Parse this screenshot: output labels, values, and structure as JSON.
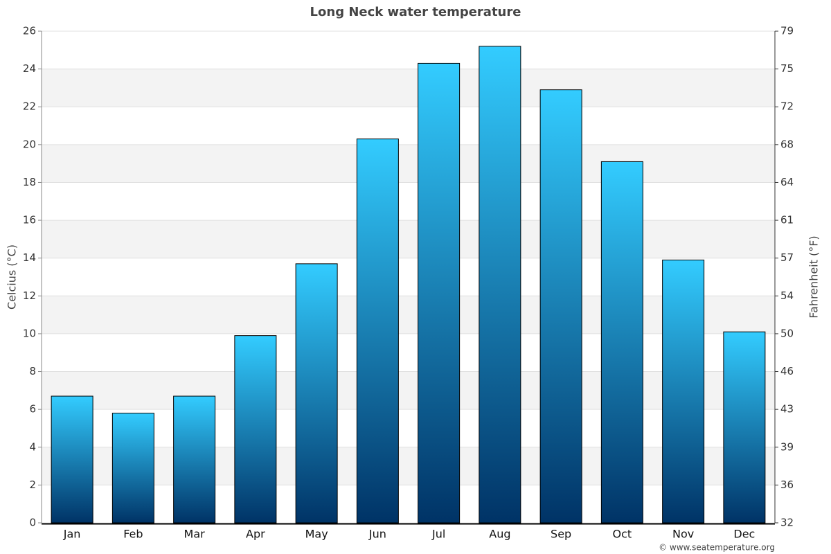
{
  "chart_data": {
    "type": "bar",
    "title": "Long Neck water temperature",
    "ylabel": "Celcius (°C)",
    "y2label": "Fahrenheit (°F)",
    "source": "© www.seatemperature.org",
    "categories": [
      "Jan",
      "Feb",
      "Mar",
      "Apr",
      "May",
      "Jun",
      "Jul",
      "Aug",
      "Sep",
      "Oct",
      "Nov",
      "Dec"
    ],
    "values": [
      6.7,
      5.8,
      6.7,
      9.9,
      13.7,
      20.3,
      24.3,
      25.2,
      22.9,
      19.1,
      13.9,
      10.1
    ],
    "gradient": [
      "#33ccff",
      "#003366"
    ],
    "ylim": [
      0,
      26
    ],
    "yticks": [
      0,
      2,
      4,
      6,
      8,
      10,
      12,
      14,
      16,
      18,
      20,
      22,
      24,
      26
    ],
    "y2lim": [
      32,
      78.8
    ],
    "y2ticks": [
      32,
      {
        "value": 35.6,
        "label": "36"
      },
      {
        "value": 39.2,
        "label": "39"
      },
      {
        "value": 42.8,
        "label": "43"
      },
      {
        "value": 46.4,
        "label": "46"
      },
      50,
      {
        "value": 53.6,
        "label": "54"
      },
      {
        "value": 57.2,
        "label": "57"
      },
      {
        "value": 60.8,
        "label": "61"
      },
      {
        "value": 64.4,
        "label": "64"
      },
      68,
      {
        "value": 71.6,
        "label": "72"
      },
      {
        "value": 75.2,
        "label": "75"
      },
      {
        "value": 78.8,
        "label": "79"
      }
    ],
    "grid": true
  }
}
